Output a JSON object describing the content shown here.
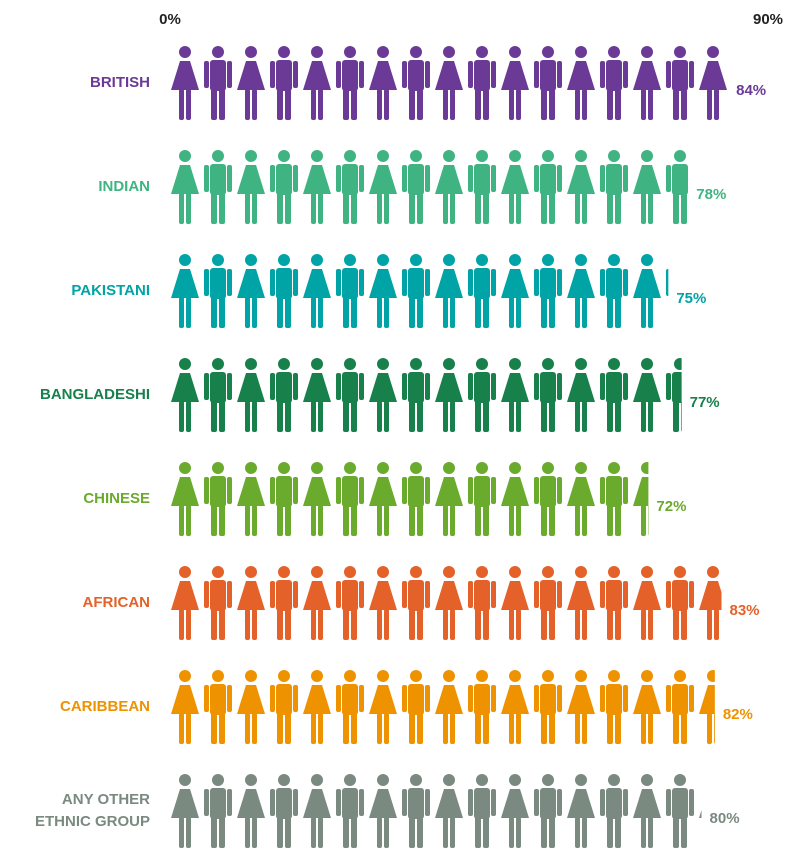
{
  "chart_data": {
    "type": "pictogram",
    "categories": [
      "BRITISH",
      "INDIAN",
      "PAKISTANI",
      "BANGLADESHI",
      "CHINESE",
      "AFRICAN",
      "CARIBBEAN",
      "ANY OTHER ETHNIC GROUP"
    ],
    "values": [
      84,
      78,
      75,
      77,
      72,
      83,
      82,
      80
    ],
    "value_labels": [
      "84%",
      "78%",
      "75%",
      "77%",
      "72%",
      "83%",
      "82%",
      "80%"
    ],
    "colors": [
      "#6b3a96",
      "#3fb482",
      "#00a3a6",
      "#17804b",
      "#6aaa2c",
      "#e5612a",
      "#ee9200",
      "#7a8a80"
    ],
    "xlim": [
      0,
      90
    ],
    "xticks": [
      {
        "value": 0,
        "label": "0%"
      },
      {
        "value": 90,
        "label": "90%"
      }
    ]
  }
}
